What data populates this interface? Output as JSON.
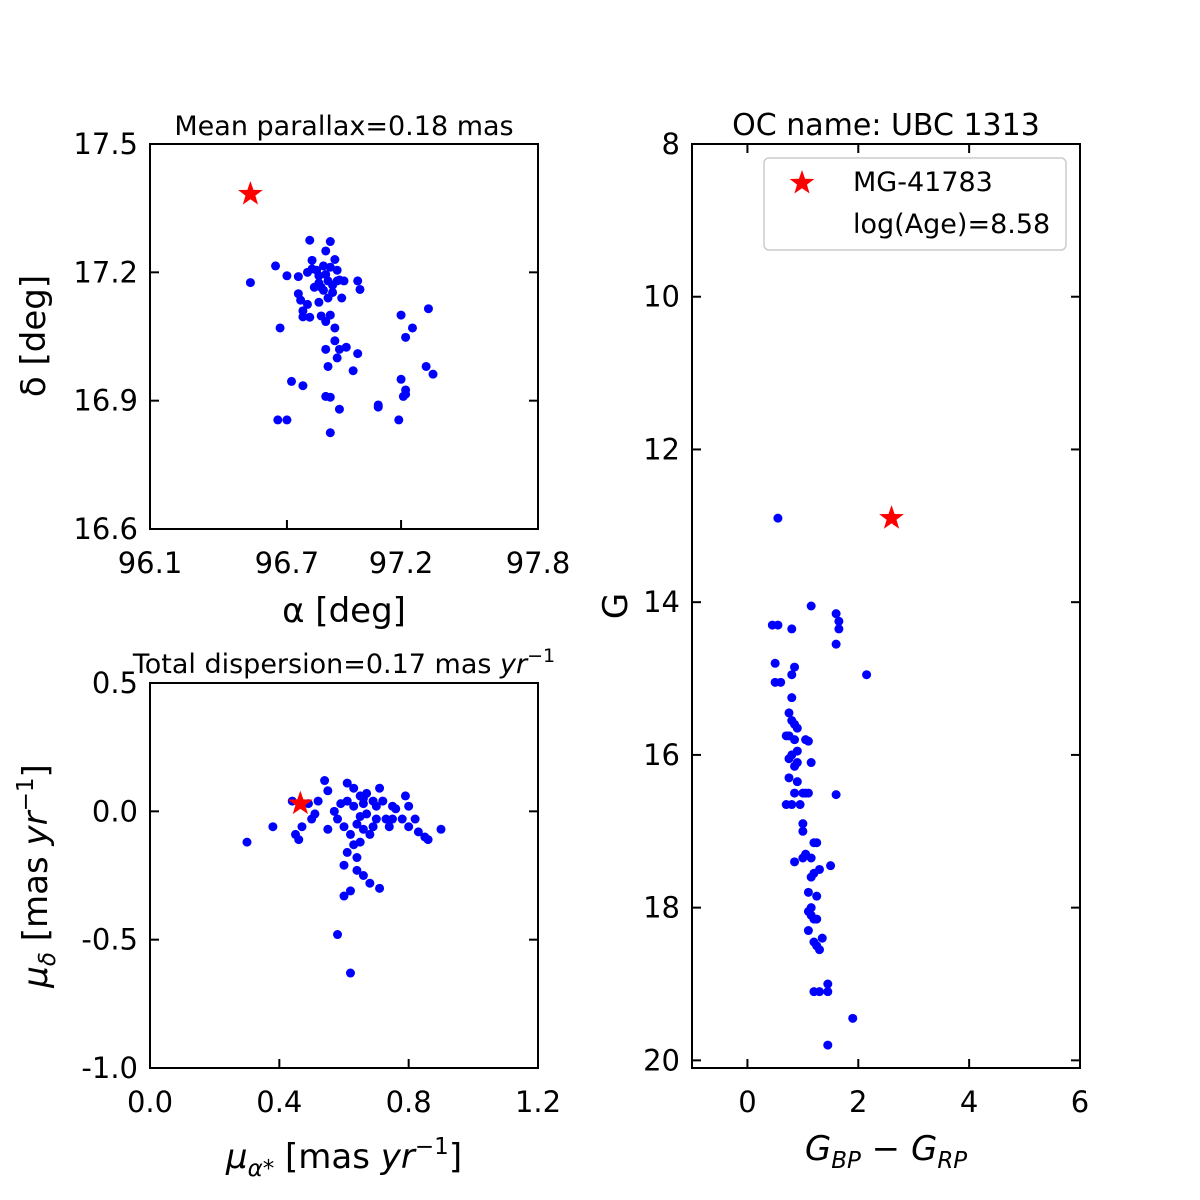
{
  "colors": {
    "members": "#0000ff",
    "target": "#ff0000"
  },
  "chart_data": [
    {
      "type": "scatter",
      "panel": "sky-position",
      "title": "Mean parallax=0.18 mas",
      "xlabel": "α [deg]",
      "ylabel": "δ [deg]",
      "xlim": [
        96.1,
        97.8
      ],
      "ylim": [
        16.6,
        17.5
      ],
      "xticks": [
        96.1,
        96.7,
        97.2,
        97.8
      ],
      "yticks": [
        16.6,
        16.9,
        17.2,
        17.5
      ],
      "xtick_labels": [
        "96.1",
        "96.7",
        "97.2",
        "97.8"
      ],
      "ytick_labels": [
        "16.6",
        "16.9",
        "17.2",
        "17.5"
      ],
      "target": {
        "x": 96.54,
        "y": 17.383
      },
      "members": [
        [
          96.54,
          17.176
        ],
        [
          96.65,
          17.215
        ],
        [
          96.7,
          17.192
        ],
        [
          96.67,
          17.07
        ],
        [
          96.75,
          17.19
        ],
        [
          96.75,
          17.15
        ],
        [
          96.76,
          17.135
        ],
        [
          96.77,
          17.11
        ],
        [
          96.77,
          17.096
        ],
        [
          96.79,
          17.2
        ],
        [
          96.79,
          17.125
        ],
        [
          96.82,
          17.165
        ],
        [
          96.8,
          17.275
        ],
        [
          96.81,
          17.228
        ],
        [
          96.81,
          17.208
        ],
        [
          96.83,
          17.205
        ],
        [
          96.84,
          17.192
        ],
        [
          96.84,
          17.175
        ],
        [
          96.85,
          17.165
        ],
        [
          96.86,
          17.215
        ],
        [
          96.86,
          17.158
        ],
        [
          96.87,
          17.25
        ],
        [
          96.87,
          17.195
        ],
        [
          96.88,
          17.18
        ],
        [
          96.88,
          17.14
        ],
        [
          96.89,
          17.272
        ],
        [
          96.89,
          17.212
        ],
        [
          96.9,
          17.17
        ],
        [
          96.9,
          17.153
        ],
        [
          96.91,
          17.23
        ],
        [
          96.92,
          17.205
        ],
        [
          96.92,
          17.18
        ],
        [
          96.93,
          17.182
        ],
        [
          96.94,
          17.14
        ],
        [
          96.95,
          17.18
        ],
        [
          96.84,
          17.13
        ],
        [
          96.85,
          17.098
        ],
        [
          96.8,
          17.095
        ],
        [
          96.87,
          17.085
        ],
        [
          96.89,
          17.1
        ],
        [
          96.91,
          17.07
        ],
        [
          96.91,
          17.04
        ],
        [
          96.93,
          17.02
        ],
        [
          96.96,
          17.025
        ],
        [
          96.87,
          17.02
        ],
        [
          96.88,
          16.98
        ],
        [
          96.92,
          17.0
        ],
        [
          97.01,
          17.18
        ],
        [
          97.02,
          17.16
        ],
        [
          97.01,
          17.01
        ],
        [
          96.99,
          16.97
        ],
        [
          96.72,
          16.945
        ],
        [
          96.77,
          16.935
        ],
        [
          96.66,
          16.855
        ],
        [
          96.7,
          16.855
        ],
        [
          96.87,
          16.91
        ],
        [
          96.89,
          16.908
        ],
        [
          96.93,
          16.88
        ],
        [
          96.89,
          16.825
        ],
        [
          97.1,
          16.885
        ],
        [
          97.1,
          16.89
        ],
        [
          97.19,
          16.855
        ],
        [
          97.2,
          17.1
        ],
        [
          97.22,
          17.048
        ],
        [
          97.2,
          16.95
        ],
        [
          97.22,
          16.925
        ],
        [
          97.22,
          16.915
        ],
        [
          97.21,
          16.91
        ],
        [
          97.25,
          17.07
        ],
        [
          97.32,
          17.115
        ],
        [
          97.31,
          16.98
        ],
        [
          97.34,
          16.962
        ]
      ]
    },
    {
      "type": "scatter",
      "panel": "proper-motion",
      "title_prefix": "Total dispersion=0.17 mas ",
      "title_unit": "yr",
      "title_exp": "−1",
      "xlabel_symbol": "μ",
      "xlabel_sub": "α*",
      "xlabel_unit_prefix": " [mas ",
      "xlabel_unit": "yr",
      "xlabel_exp": "−1",
      "xlabel_close": "]",
      "ylabel_symbol": "μ",
      "ylabel_sub": "δ",
      "ylabel_unit_prefix": " [mas ",
      "ylabel_unit": "yr",
      "ylabel_exp": "−1",
      "ylabel_close": "]",
      "xlim": [
        0.0,
        1.2
      ],
      "ylim": [
        -1.0,
        0.5
      ],
      "xticks": [
        0.0,
        0.4,
        0.8,
        1.2
      ],
      "yticks": [
        -1.0,
        -0.5,
        0.0,
        0.5
      ],
      "xtick_labels": [
        "0.0",
        "0.4",
        "0.8",
        "1.2"
      ],
      "ytick_labels": [
        "-1.0",
        "-0.5",
        "0.0",
        "0.5"
      ],
      "target": {
        "x": 0.465,
        "y": 0.03
      },
      "members": [
        [
          0.3,
          -0.12
        ],
        [
          0.38,
          -0.06
        ],
        [
          0.44,
          0.04
        ],
        [
          0.45,
          -0.09
        ],
        [
          0.46,
          -0.11
        ],
        [
          0.47,
          -0.06
        ],
        [
          0.49,
          0.03
        ],
        [
          0.5,
          -0.03
        ],
        [
          0.51,
          -0.01
        ],
        [
          0.52,
          0.04
        ],
        [
          0.54,
          0.12
        ],
        [
          0.55,
          0.08
        ],
        [
          0.55,
          -0.07
        ],
        [
          0.57,
          0.0
        ],
        [
          0.58,
          -0.03
        ],
        [
          0.59,
          0.03
        ],
        [
          0.6,
          -0.06
        ],
        [
          0.6,
          -0.21
        ],
        [
          0.6,
          -0.33
        ],
        [
          0.61,
          0.11
        ],
        [
          0.61,
          0.04
        ],
        [
          0.62,
          -0.09
        ],
        [
          0.62,
          -0.31
        ],
        [
          0.63,
          0.09
        ],
        [
          0.63,
          0.02
        ],
        [
          0.64,
          -0.05
        ],
        [
          0.64,
          -0.18
        ],
        [
          0.64,
          -0.23
        ],
        [
          0.65,
          0.06
        ],
        [
          0.65,
          -0.02
        ],
        [
          0.65,
          -0.12
        ],
        [
          0.66,
          0.03
        ],
        [
          0.66,
          -0.07
        ],
        [
          0.66,
          -0.25
        ],
        [
          0.67,
          0.07
        ],
        [
          0.67,
          -0.01
        ],
        [
          0.68,
          -0.09
        ],
        [
          0.68,
          -0.28
        ],
        [
          0.69,
          0.04
        ],
        [
          0.69,
          -0.06
        ],
        [
          0.7,
          0.02
        ],
        [
          0.7,
          -0.03
        ],
        [
          0.71,
          0.09
        ],
        [
          0.71,
          -0.3
        ],
        [
          0.72,
          0.04
        ],
        [
          0.73,
          -0.03
        ],
        [
          0.74,
          -0.06
        ],
        [
          0.75,
          -0.03
        ],
        [
          0.75,
          0.02
        ],
        [
          0.76,
          0.01
        ],
        [
          0.78,
          -0.03
        ],
        [
          0.79,
          0.06
        ],
        [
          0.8,
          0.02
        ],
        [
          0.8,
          -0.06
        ],
        [
          0.82,
          -0.03
        ],
        [
          0.83,
          -0.08
        ],
        [
          0.85,
          -0.1
        ],
        [
          0.86,
          -0.11
        ],
        [
          0.9,
          -0.07
        ],
        [
          0.58,
          -0.48
        ],
        [
          0.62,
          -0.63
        ],
        [
          0.61,
          -0.16
        ],
        [
          0.63,
          -0.13
        ],
        [
          0.66,
          0.05
        ]
      ]
    },
    {
      "type": "scatter",
      "panel": "color-magnitude",
      "title": "OC name: UBC 1313",
      "ylabel": "G",
      "xlabel_main1": "G",
      "xlabel_sub1": "BP",
      "xlabel_minus": " − ",
      "xlabel_main2": "G",
      "xlabel_sub2": "RP",
      "xlim": [
        -1,
        6
      ],
      "ylim": [
        20.1,
        8
      ],
      "xticks": [
        0,
        2,
        4,
        6
      ],
      "yticks": [
        8,
        10,
        12,
        14,
        16,
        18,
        20
      ],
      "xtick_labels": [
        "0",
        "2",
        "4",
        "6"
      ],
      "ytick_labels": [
        "8",
        "10",
        "12",
        "14",
        "16",
        "18",
        "20"
      ],
      "legend": {
        "position": "top-right",
        "target_label": "MG-41783",
        "age_label": "log(Age)=8.58"
      },
      "target": {
        "x": 2.6,
        "y": 12.9
      },
      "members": [
        [
          0.55,
          12.9
        ],
        [
          1.15,
          14.05
        ],
        [
          1.6,
          14.15
        ],
        [
          1.65,
          14.25
        ],
        [
          1.65,
          14.35
        ],
        [
          1.6,
          14.55
        ],
        [
          2.15,
          14.95
        ],
        [
          0.45,
          14.3
        ],
        [
          0.55,
          14.3
        ],
        [
          0.8,
          14.35
        ],
        [
          0.5,
          14.8
        ],
        [
          0.85,
          14.85
        ],
        [
          0.8,
          14.95
        ],
        [
          0.5,
          15.05
        ],
        [
          0.6,
          15.05
        ],
        [
          0.8,
          15.25
        ],
        [
          0.75,
          15.45
        ],
        [
          0.8,
          15.55
        ],
        [
          0.85,
          15.6
        ],
        [
          0.9,
          15.65
        ],
        [
          0.75,
          15.75
        ],
        [
          0.7,
          15.75
        ],
        [
          0.85,
          15.8
        ],
        [
          1.05,
          15.8
        ],
        [
          1.1,
          15.82
        ],
        [
          0.9,
          15.95
        ],
        [
          0.8,
          16.0
        ],
        [
          0.75,
          16.05
        ],
        [
          0.9,
          16.1
        ],
        [
          0.85,
          16.15
        ],
        [
          1.15,
          16.1
        ],
        [
          0.75,
          16.3
        ],
        [
          0.9,
          16.35
        ],
        [
          0.85,
          16.5
        ],
        [
          1.0,
          16.5
        ],
        [
          1.05,
          16.5
        ],
        [
          1.1,
          16.5
        ],
        [
          0.7,
          16.65
        ],
        [
          0.8,
          16.65
        ],
        [
          0.95,
          16.65
        ],
        [
          1.6,
          16.52
        ],
        [
          1.0,
          16.9
        ],
        [
          1.0,
          17.0
        ],
        [
          1.2,
          17.15
        ],
        [
          1.25,
          17.15
        ],
        [
          1.05,
          17.3
        ],
        [
          1.15,
          17.35
        ],
        [
          0.85,
          17.4
        ],
        [
          1.0,
          17.35
        ],
        [
          1.5,
          17.45
        ],
        [
          1.3,
          17.5
        ],
        [
          1.2,
          17.55
        ],
        [
          1.15,
          17.6
        ],
        [
          1.1,
          17.8
        ],
        [
          1.25,
          17.85
        ],
        [
          1.15,
          18.0
        ],
        [
          1.1,
          18.05
        ],
        [
          1.15,
          18.1
        ],
        [
          1.2,
          18.15
        ],
        [
          1.25,
          18.15
        ],
        [
          1.1,
          18.3
        ],
        [
          1.2,
          18.45
        ],
        [
          1.35,
          18.4
        ],
        [
          1.25,
          18.5
        ],
        [
          1.3,
          18.55
        ],
        [
          1.45,
          19.0
        ],
        [
          1.45,
          19.1
        ],
        [
          1.2,
          19.1
        ],
        [
          1.3,
          19.1
        ],
        [
          1.9,
          19.45
        ],
        [
          1.45,
          19.8
        ]
      ]
    }
  ]
}
